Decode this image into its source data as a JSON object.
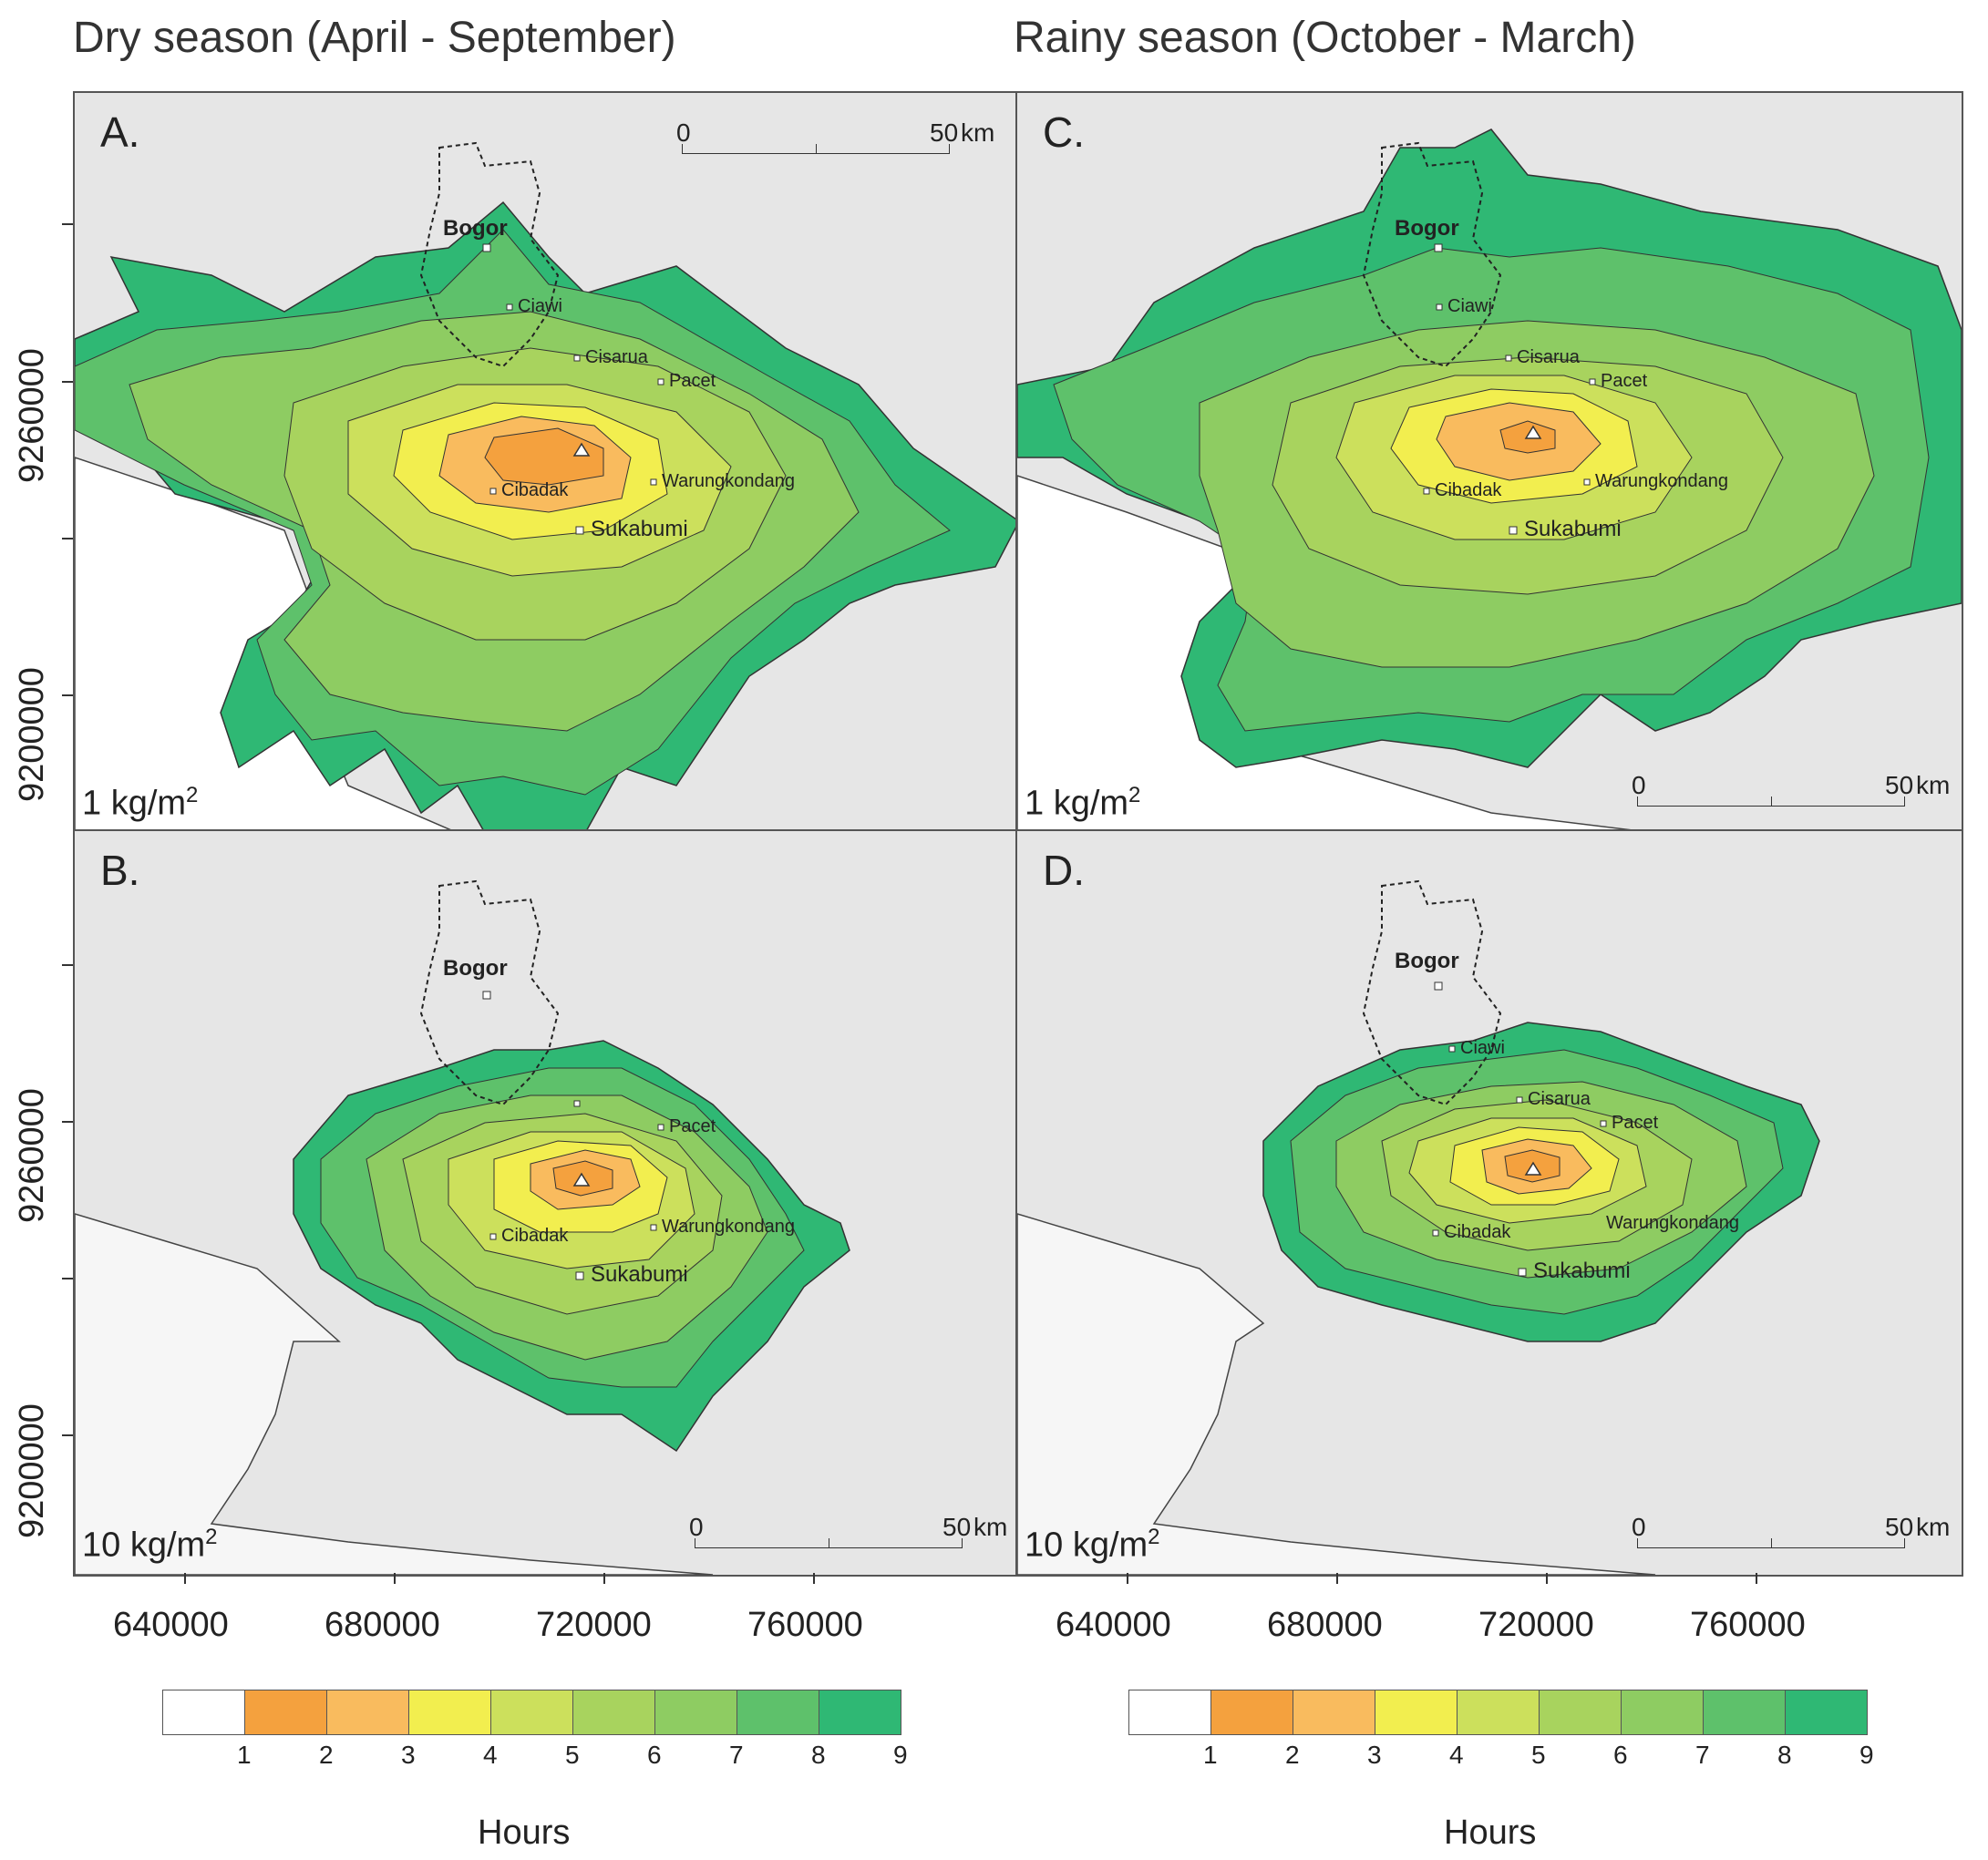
{
  "titles": {
    "dry": "Dry season (April - September)",
    "rainy": "Rainy season (October - March)"
  },
  "panels": [
    {
      "letter": "A.",
      "load": "1 kg/m",
      "load_sup": "2",
      "season": "dry",
      "extent": "large"
    },
    {
      "letter": "B.",
      "load": "10 kg/m",
      "load_sup": "2",
      "season": "dry",
      "extent": "small"
    },
    {
      "letter": "C.",
      "load": "1 kg/m",
      "load_sup": "2",
      "season": "rainy",
      "extent": "large"
    },
    {
      "letter": "D.",
      "load": "10 kg/m",
      "load_sup": "2",
      "season": "rainy",
      "extent": "small"
    }
  ],
  "scale_bar": {
    "zero": "0",
    "fifty": "50",
    "unit": "km"
  },
  "towns": {
    "bogor": "Bogor",
    "ciawi": "Ciawi",
    "cisarua": "Cisarua",
    "pacet": "Pacet",
    "cibadak": "Cibadak",
    "warungkondang": "Warungkondang",
    "sukabumi": "Sukabumi"
  },
  "axes": {
    "y_ticks": [
      "9260000",
      "9200000"
    ],
    "x_ticks": [
      "640000",
      "680000",
      "720000",
      "760000"
    ]
  },
  "legend": {
    "title": "Hours",
    "numbers": [
      "1",
      "2",
      "3",
      "4",
      "5",
      "6",
      "7",
      "8",
      "9"
    ],
    "colors": [
      "#ffffff",
      "#f4a13e",
      "#f9bb5e",
      "#f2ee4f",
      "#cce05c",
      "#a8d35e",
      "#8ecc62",
      "#5ec16b",
      "#2fb874"
    ]
  },
  "contour_colors": {
    "outer": "#2fb874",
    "band8": "#5ec16b",
    "band7": "#8ecc62",
    "band6": "#a8d35e",
    "band5": "#cce05c",
    "band4": "#f2ee4f",
    "band3": "#f9bb5e",
    "core": "#f4a13e",
    "vent": "#f08a2a"
  }
}
